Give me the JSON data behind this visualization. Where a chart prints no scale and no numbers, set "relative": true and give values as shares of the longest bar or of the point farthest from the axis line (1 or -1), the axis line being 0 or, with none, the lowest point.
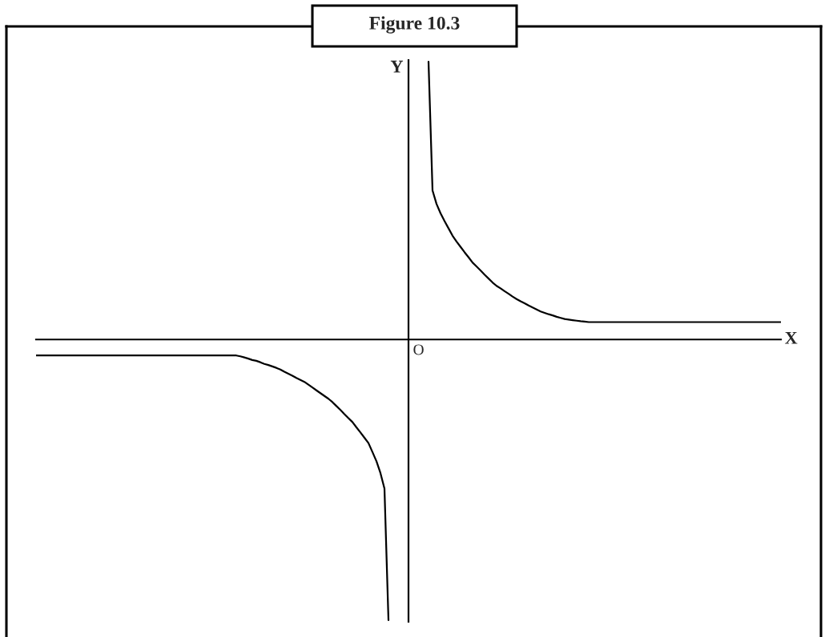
{
  "chart_data": {
    "type": "line",
    "title": "Figure 10.3",
    "xlabel": "X",
    "ylabel": "Y",
    "relative": true,
    "annotations": [
      "O"
    ],
    "categories": [
      null,
      null,
      null,
      null,
      null,
      null,
      null,
      null,
      null,
      null,
      null,
      null,
      null,
      null,
      null,
      null,
      null,
      null,
      null,
      null,
      null,
      null,
      null,
      null,
      null,
      null,
      null,
      null,
      null,
      null,
      null,
      null,
      null,
      null,
      null,
      null,
      null,
      null,
      null,
      null,
      null,
      null,
      null,
      null,
      null,
      null,
      null,
      null,
      null,
      null,
      null,
      null,
      null,
      null,
      null,
      null,
      null,
      null,
      null,
      null,
      null,
      null,
      null,
      null,
      null,
      null,
      null,
      null,
      null,
      null,
      null,
      null,
      null,
      null,
      null,
      null,
      null,
      null,
      null,
      null,
      null,
      null,
      null,
      null,
      null,
      null,
      null,
      null,
      null,
      null,
      null,
      null,
      null,
      null,
      null,
      null,
      null,
      null,
      null,
      null,
      null,
      null,
      null,
      null,
      null,
      null,
      null,
      null,
      null,
      null,
      null,
      null,
      null,
      null,
      null,
      null,
      null,
      null,
      null,
      null,
      null,
      null,
      null,
      null,
      null,
      null,
      null,
      null,
      null,
      null,
      null,
      null,
      null,
      null,
      null,
      null,
      null,
      null,
      null,
      null,
      null,
      null,
      null,
      null,
      null,
      null,
      null,
      null,
      null,
      null,
      null,
      null,
      null,
      null,
      null,
      null,
      null,
      null,
      null,
      null,
      null,
      null,
      null,
      null,
      null,
      null,
      null,
      null,
      null,
      null,
      null,
      null,
      null,
      null,
      null,
      null,
      null,
      null,
      null,
      null,
      null,
      null,
      null,
      null,
      null,
      null,
      null
    ],
    "series": [
      {
        "color": "#000000",
        "values": [
          -0.057,
          -0.057,
          -0.057,
          -0.057,
          -0.057,
          -0.057,
          -0.057,
          -0.057,
          -0.057,
          -0.057,
          -0.057,
          -0.057,
          -0.057,
          -0.057,
          -0.057,
          -0.057,
          -0.057,
          -0.057,
          -0.057,
          -0.057,
          -0.057,
          -0.057,
          -0.057,
          -0.057,
          -0.057,
          -0.057,
          -0.057,
          -0.057,
          -0.057,
          -0.057,
          -0.057,
          -0.057,
          -0.057,
          -0.057,
          -0.057,
          -0.057,
          -0.057,
          -0.057,
          -0.057,
          -0.057,
          -0.057,
          -0.057,
          -0.057,
          -0.057,
          -0.057,
          -0.057,
          -0.057,
          -0.057,
          -0.057,
          -0.057,
          -0.057,
          -0.06,
          -0.064,
          -0.068,
          -0.073,
          -0.076,
          -0.081,
          -0.087,
          -0.091,
          -0.096,
          -0.101,
          -0.107,
          -0.115,
          -0.122,
          -0.129,
          -0.137,
          -0.144,
          -0.151,
          -0.161,
          -0.171,
          -0.181,
          -0.191,
          -0.201,
          -0.211,
          -0.223,
          -0.237,
          -0.251,
          -0.266,
          -0.28,
          -0.294,
          -0.313,
          -0.331,
          -0.35,
          -0.369,
          -0.401,
          -0.434,
          -0.476,
          -0.531,
          -1.0,
          null,
          null,
          null,
          null,
          null,
          null,
          null,
          null,
          null,
          0.99,
          0.531,
          0.483,
          0.45,
          0.422,
          0.396,
          0.37,
          0.349,
          0.33,
          0.311,
          0.293,
          0.274,
          0.26,
          0.246,
          0.231,
          0.217,
          0.203,
          0.191,
          0.182,
          0.172,
          0.163,
          0.153,
          0.144,
          0.136,
          0.129,
          0.121,
          0.114,
          0.107,
          0.1,
          0.095,
          0.09,
          0.086,
          0.081,
          0.077,
          0.073,
          0.071,
          0.069,
          0.067,
          0.065,
          0.064,
          0.062,
          0.062,
          0.062,
          0.062,
          0.062,
          0.062,
          0.062,
          0.062,
          0.062,
          0.062,
          0.062,
          0.062,
          0.062,
          0.062,
          0.062,
          0.062,
          0.062,
          0.062,
          0.062,
          0.062,
          0.062,
          0.062,
          0.062,
          0.062,
          0.062,
          0.062,
          0.062,
          0.062,
          0.062,
          0.062,
          0.062,
          0.062,
          0.062,
          0.062,
          0.062,
          0.062,
          0.062,
          0.062,
          0.062,
          0.062,
          0.062,
          0.062,
          0.062,
          0.062,
          0.062,
          0.062,
          0.062,
          0.062,
          0.062
        ]
      }
    ]
  }
}
